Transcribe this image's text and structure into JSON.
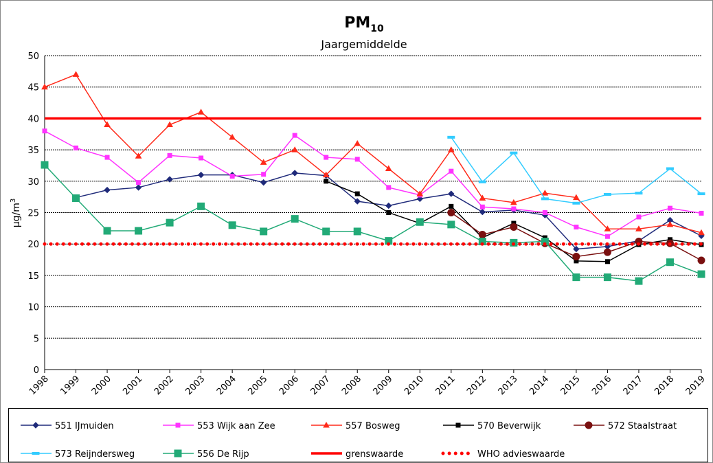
{
  "chart_data": {
    "type": "line",
    "title": "PM",
    "title_subscript": "10",
    "subtitle": "Jaargemiddelde",
    "ylabel": "µg/m",
    "ylabel_superscript": "3",
    "categories": [
      "1998",
      "1999",
      "2000",
      "2001",
      "2002",
      "2003",
      "2004",
      "2005",
      "2006",
      "2007",
      "2008",
      "2009",
      "2010",
      "2011",
      "2012",
      "2013",
      "2014",
      "2015",
      "2016",
      "2017",
      "2018",
      "2019"
    ],
    "ylim": [
      0,
      50
    ],
    "yticks": [
      0,
      5,
      10,
      15,
      20,
      25,
      30,
      35,
      40,
      45,
      50
    ],
    "grid": true,
    "series": [
      {
        "name": "551 IJmuiden",
        "color": "#1f2a7a",
        "marker": "diamond",
        "style": "solid",
        "values": [
          null,
          27.4,
          28.6,
          29.0,
          30.3,
          31.0,
          31.0,
          29.8,
          31.3,
          30.9,
          26.8,
          26.1,
          27.2,
          28.0,
          25.1,
          25.4,
          24.6,
          19.2,
          19.6,
          20.5,
          23.8,
          21.3
        ]
      },
      {
        "name": "553 Wijk aan Zee",
        "color": "#ff33ff",
        "marker": "square",
        "style": "solid",
        "values": [
          38.0,
          35.3,
          33.8,
          29.8,
          34.1,
          33.7,
          30.8,
          31.1,
          37.3,
          33.8,
          33.5,
          29.0,
          27.8,
          31.6,
          25.9,
          25.6,
          25.0,
          22.7,
          21.2,
          24.3,
          25.7,
          24.9
        ]
      },
      {
        "name": "557 Bosweg",
        "color": "#ff2a1a",
        "marker": "triangle",
        "style": "solid",
        "values": [
          45,
          47,
          39,
          34,
          39,
          41,
          37,
          33,
          35,
          31,
          36,
          32,
          28,
          35,
          27.3,
          26.6,
          28.1,
          27.4,
          22.4,
          22.4,
          23.1,
          21.8
        ]
      },
      {
        "name": "570 Beverwijk",
        "color": "#000000",
        "marker": "square",
        "style": "solid",
        "values": [
          null,
          null,
          null,
          null,
          null,
          null,
          null,
          null,
          null,
          30,
          28,
          25,
          23.3,
          26,
          21,
          23.3,
          21,
          17.3,
          17.2,
          19.9,
          20.7,
          19.9
        ]
      },
      {
        "name": "572 Staalstraat",
        "color": "#7a1010",
        "marker": "circle",
        "style": "solid",
        "values": [
          null,
          null,
          null,
          null,
          null,
          null,
          null,
          null,
          null,
          null,
          null,
          null,
          null,
          25.0,
          21.5,
          22.7,
          20.1,
          18.0,
          18.7,
          20.4,
          20.1,
          17.4
        ]
      },
      {
        "name": "573 Reijndersweg",
        "color": "#33ccff",
        "marker": "dash",
        "style": "solid",
        "values": [
          null,
          null,
          null,
          null,
          null,
          null,
          null,
          null,
          null,
          null,
          null,
          null,
          null,
          37,
          29.9,
          34.5,
          27.2,
          26.5,
          27.9,
          28.1,
          32.0,
          28.0
        ]
      },
      {
        "name": "556 De Rijp",
        "color": "#22aa77",
        "marker": "bigsquare",
        "style": "solid",
        "values": [
          32.6,
          27.3,
          22.1,
          22.1,
          23.4,
          26,
          23,
          22,
          24,
          22,
          22,
          20.5,
          23.5,
          23.1,
          20.4,
          20.2,
          20.4,
          14.7,
          14.7,
          14.1,
          17.1,
          15.2
        ]
      },
      {
        "name": "grenswaarde",
        "color": "#ff0000",
        "marker": "none",
        "style": "thick",
        "values": [
          40,
          40,
          40,
          40,
          40,
          40,
          40,
          40,
          40,
          40,
          40,
          40,
          40,
          40,
          40,
          40,
          40,
          40,
          40,
          40,
          40,
          40
        ]
      },
      {
        "name": "WHO advieswaarde",
        "color": "#ff0000",
        "marker": "none",
        "style": "dots",
        "values": [
          20,
          20,
          20,
          20,
          20,
          20,
          20,
          20,
          20,
          20,
          20,
          20,
          20,
          20,
          20,
          20,
          20,
          20,
          20,
          20,
          20,
          20
        ]
      }
    ]
  }
}
